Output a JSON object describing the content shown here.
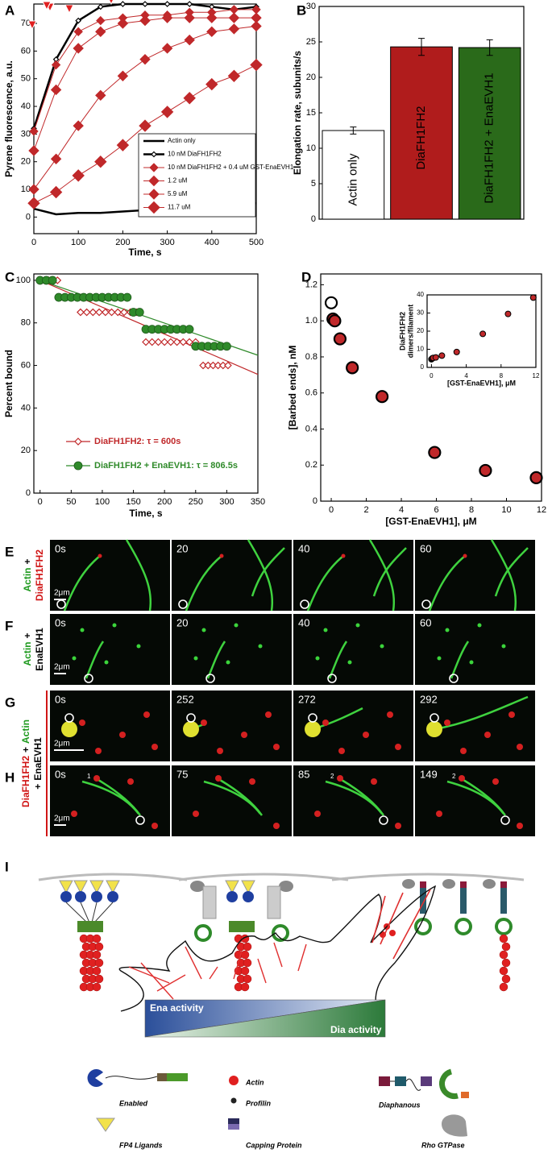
{
  "chart_data": [
    {
      "panel": "A",
      "type": "line",
      "xlabel": "Time, s",
      "ylabel": "Pyrene fluorescence, a.u.",
      "x": [
        0,
        50,
        100,
        150,
        200,
        250,
        300,
        350,
        400,
        450,
        500
      ],
      "xlim": [
        0,
        500
      ],
      "xticks": [
        0,
        100,
        200,
        300,
        400,
        500
      ],
      "ylim": [
        -6,
        77
      ],
      "yticks": [
        0,
        10,
        20,
        30,
        40,
        50,
        60,
        70
      ],
      "legend": "lower right",
      "series": [
        {
          "name": "Actin only",
          "color": "#000000",
          "marker": "none",
          "values": [
            3,
            1,
            1.5,
            1.5,
            2,
            2.5,
            4,
            3.5,
            4.5,
            5,
            5
          ]
        },
        {
          "name": "10 nM  DiaFH1FH2",
          "color": "#000000",
          "marker": "open-diamond",
          "values": [
            32,
            57,
            71,
            76,
            77,
            77,
            77,
            77,
            76,
            75,
            76
          ]
        },
        {
          "name": "10 nM DiaFH1FH2 + 0.4 uM GST-EnaEVH1",
          "color": "#c0282a",
          "marker": "diamond",
          "values": [
            31,
            55,
            67,
            71,
            72,
            73,
            73,
            74,
            74,
            75,
            75
          ]
        },
        {
          "name": "1.2  uM",
          "color": "#c0282a",
          "marker": "diamond",
          "values": [
            24,
            46,
            61,
            67,
            70,
            71,
            72,
            72,
            72,
            72,
            72
          ]
        },
        {
          "name": "5.9  uM",
          "color": "#c0282a",
          "marker": "diamond",
          "values": [
            10,
            21,
            33,
            44,
            51,
            57,
            61,
            64,
            67,
            68,
            69
          ]
        },
        {
          "name": "11.7 uM",
          "color": "#c0282a",
          "marker": "diamond",
          "values": [
            5,
            9,
            15,
            20,
            26,
            33,
            38,
            43,
            48,
            51,
            55
          ]
        }
      ]
    },
    {
      "panel": "B",
      "type": "bar",
      "ylabel": "Elongation rate, subunits/s",
      "categories": [
        "Actin only",
        "DiaFH1FH2",
        "DiaFH1FH2 + EnaEVH1"
      ],
      "values": [
        12.5,
        24.3,
        24.2
      ],
      "errors": [
        0.5,
        1.2,
        1.1
      ],
      "colors": [
        "#ffffff",
        "#b01c1c",
        "#2a6a1a"
      ],
      "ylim": [
        0,
        30
      ],
      "yticks": [
        0,
        5,
        10,
        15,
        20,
        25,
        30
      ]
    },
    {
      "panel": "C",
      "type": "scatter",
      "xlabel": "Time, s",
      "ylabel": "Percent bound",
      "xlim": [
        -10,
        350
      ],
      "xticks": [
        0,
        50,
        100,
        150,
        200,
        250,
        300,
        350
      ],
      "ylim": [
        0,
        103
      ],
      "yticks": [
        0,
        20,
        40,
        60,
        80,
        100
      ],
      "legend": "lower left",
      "fit_x": [
        0,
        350
      ],
      "series": [
        {
          "name": "DiaFH1FH2: τ = 600s",
          "color": "#c0282a",
          "marker": "open-diamond",
          "x": [
            0,
            7,
            14,
            21,
            28,
            65,
            75,
            85,
            95,
            105,
            115,
            125,
            135,
            145,
            155,
            170,
            180,
            190,
            200,
            210,
            220,
            230,
            240,
            250,
            262,
            270,
            278,
            286,
            294,
            302
          ],
          "values": [
            100,
            100,
            100,
            100,
            100,
            85,
            85,
            85,
            85,
            85,
            85,
            85,
            85,
            85,
            85,
            71,
            71,
            71,
            71,
            71,
            71,
            71,
            71,
            71,
            60,
            60,
            60,
            60,
            60,
            60
          ],
          "fit": [
            100,
            55.8
          ]
        },
        {
          "name": "DiaFH1FH2 + EnaEVH1: τ = 806.5s",
          "color": "#2f8a2a",
          "marker": "dot",
          "x": [
            0,
            10,
            20,
            30,
            40,
            50,
            60,
            70,
            80,
            90,
            100,
            110,
            120,
            130,
            140,
            150,
            160,
            170,
            180,
            190,
            200,
            210,
            220,
            230,
            240,
            250,
            260,
            270,
            280,
            290,
            300
          ],
          "values": [
            100,
            100,
            100,
            92,
            92,
            92,
            92,
            92,
            92,
            92,
            92,
            92,
            92,
            92,
            92,
            85,
            85,
            77,
            77,
            77,
            77,
            77,
            77,
            77,
            77,
            69,
            69,
            69,
            69,
            69,
            69
          ],
          "fit": [
            100,
            64.8
          ]
        }
      ]
    },
    {
      "panel": "D",
      "type": "scatter",
      "xlabel": "[GST-EnaEVH1], μM",
      "ylabel": "[Barbed ends], nM",
      "xlim": [
        -0.6,
        12
      ],
      "xticks": [
        0,
        2,
        4,
        6,
        8,
        10,
        12
      ],
      "ylim": [
        0,
        1.26
      ],
      "yticks": [
        0,
        0.2,
        0.4,
        0.6,
        0.8,
        {
          "value": 1,
          "label": "1.0"
        },
        1.2
      ],
      "series": [
        {
          "color": "#ffffff",
          "marker": "circle",
          "x": [
            0
          ],
          "values": [
            1.1
          ]
        },
        {
          "color": "#c0282a",
          "marker": "circle",
          "x": [
            0.1,
            0.2,
            0.5,
            1.2,
            2.9,
            5.9,
            8.8,
            11.7
          ],
          "values": [
            1.01,
            1.0,
            0.9,
            0.74,
            0.58,
            0.27,
            0.17,
            0.13
          ]
        }
      ]
    },
    {
      "type": "scatter",
      "xlabel": "[GST-EnaEVH1], μM",
      "ylabel": [
        "DiaFH1FH2",
        "dimers/filament"
      ],
      "xlim": [
        -0.5,
        12
      ],
      "xticks": [
        0,
        4,
        8,
        12
      ],
      "ylim": [
        0,
        40
      ],
      "yticks": [
        0,
        10,
        20,
        30,
        40
      ],
      "series": [
        {
          "color": "#000000",
          "marker": "circle",
          "x": [
            0
          ],
          "values": [
            4.5
          ]
        },
        {
          "color": "#c0282a",
          "marker": "circle",
          "x": [
            0.1,
            0.2,
            0.5,
            1.2,
            2.9,
            5.9,
            8.8,
            11.7
          ],
          "values": [
            5,
            5.2,
            5.5,
            6.5,
            8.5,
            18.5,
            29.5,
            38.5
          ]
        }
      ]
    }
  ],
  "micrographs": {
    "rows": [
      {
        "panel": "E",
        "label": [
          [
            {
              "text": "Actin",
              "color": "#1f9a1f"
            },
            {
              "text": "+",
              "color": "#000000"
            }
          ],
          [
            {
              "text": "DiaFH1FH2",
              "color": "#d01515"
            }
          ]
        ],
        "times": [
          "0s",
          "20",
          "40",
          "60"
        ],
        "scale": "2μm"
      },
      {
        "panel": "F",
        "label": [
          [
            {
              "text": "Actin",
              "color": "#1f9a1f"
            },
            {
              "text": "+",
              "color": "#000000"
            }
          ],
          [
            {
              "text": "EnaEVH1",
              "color": "#000000"
            }
          ]
        ],
        "times": [
          "0s",
          "20",
          "40",
          "60"
        ],
        "scale": "2μm"
      },
      {
        "panel": "G",
        "times": [
          "0s",
          "252",
          "272",
          "292"
        ],
        "scale": "2μm"
      },
      {
        "panel": "H",
        "times": [
          "0s",
          "75",
          "85",
          "149"
        ],
        "scale": "2μm",
        "arrow_numbers": [
          "1",
          null,
          "2",
          "2"
        ]
      }
    ],
    "shared_label": [
      [
        {
          "text": "DiaFH1FH2",
          "color": "#d01515"
        },
        {
          "text": "+",
          "color": "#000000"
        },
        {
          "text": "Actin",
          "color": "#1f9a1f"
        }
      ],
      [
        {
          "text": "+",
          "color": "#000000"
        },
        {
          "text": "EnaEVH1",
          "color": "#000000"
        }
      ]
    ]
  },
  "diagram": {
    "panel": "I",
    "gradient": [
      "Ena activity",
      "Dia activity"
    ],
    "legend": [
      "Enabled",
      "Actin",
      "Profilin",
      "Diaphanous",
      "FP4 Ligands",
      "Capping Protein",
      "Rho GTPase"
    ]
  }
}
